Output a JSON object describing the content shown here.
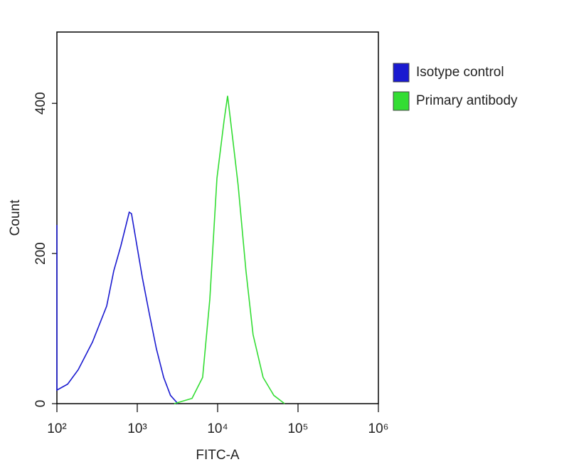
{
  "chart_data": {
    "type": "histogram-line",
    "x_label": "FITC-A",
    "y_label": "Count",
    "log_x": true,
    "xlim": [
      100,
      1000000
    ],
    "ylim": [
      0,
      495
    ],
    "xticks": [
      {
        "value": 100,
        "label": "10²"
      },
      {
        "value": 1000,
        "label": "10³"
      },
      {
        "value": 10000,
        "label": "10⁴"
      },
      {
        "value": 100000,
        "label": "10⁵"
      },
      {
        "value": 1000000,
        "label": "10⁶"
      }
    ],
    "yticks": [
      0,
      200,
      400
    ],
    "legend_position": "outside-right",
    "series": [
      {
        "name": "Isotype control",
        "color": "#1a1ad0",
        "x": [
          100,
          100,
          136,
          184,
          277,
          416,
          510,
          625,
          794,
          848,
          1156,
          1410,
          1730,
          2130,
          2590,
          3200
        ],
        "values": [
          238,
          18,
          26,
          45,
          82,
          130,
          177,
          210,
          255,
          253,
          168,
          120,
          73,
          35,
          11,
          0
        ]
      },
      {
        "name": "Primary antibody",
        "color": "#33dd33",
        "x": [
          2880,
          4800,
          6500,
          8000,
          9800,
          12000,
          13300,
          15600,
          18000,
          22500,
          27600,
          36800,
          50000,
          68000
        ],
        "values": [
          0,
          7,
          35,
          139,
          300,
          376,
          410,
          348,
          291,
          177,
          92,
          35,
          11,
          0
        ]
      }
    ]
  }
}
